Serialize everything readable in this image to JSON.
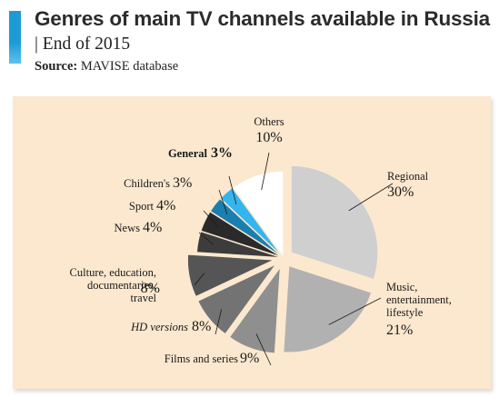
{
  "header": {
    "title": "Genres of main TV channels available in Russia",
    "subtitle": "| End of 2015",
    "source_label": "Source:",
    "source_text": "MAVISE database"
  },
  "colors": {
    "accent": "#1d9bd7",
    "panel_background": "#fbe8cf"
  },
  "chart_data": {
    "type": "pie",
    "unit": "%",
    "slices": [
      {
        "label": "Regional",
        "value": 30,
        "value_text": "30%",
        "color": "#cfcfcf",
        "exploded": true
      },
      {
        "label": "Music, entertainment, lifestyle",
        "value": 21,
        "value_text": "21%",
        "color": "#b1b1b1",
        "exploded": true
      },
      {
        "label": "Films and series",
        "value": 9,
        "value_text": "9%",
        "color": "#8f8f8f",
        "exploded": true
      },
      {
        "label": "HD versions",
        "value": 8,
        "value_text": "8%",
        "color": "#737373",
        "exploded": true
      },
      {
        "label": "Culture, education, documentaries, travel",
        "value": 8,
        "value_text": "8%",
        "color": "#555555",
        "exploded": true
      },
      {
        "label": "News",
        "value": 4,
        "value_text": "4%",
        "color": "#3c3c3c",
        "exploded": false
      },
      {
        "label": "Sport",
        "value": 4,
        "value_text": "4%",
        "color": "#2a2a2a",
        "exploded": false
      },
      {
        "label": "Children's",
        "value": 3,
        "value_text": "3%",
        "color": "#1a7fae",
        "exploded": false
      },
      {
        "label": "General",
        "value": 3,
        "value_text": "3%",
        "color": "#35b5ee",
        "exploded": false
      },
      {
        "label": "Others",
        "value": 10,
        "value_text": "10%",
        "color": "#ffffff",
        "exploded": false
      }
    ]
  }
}
